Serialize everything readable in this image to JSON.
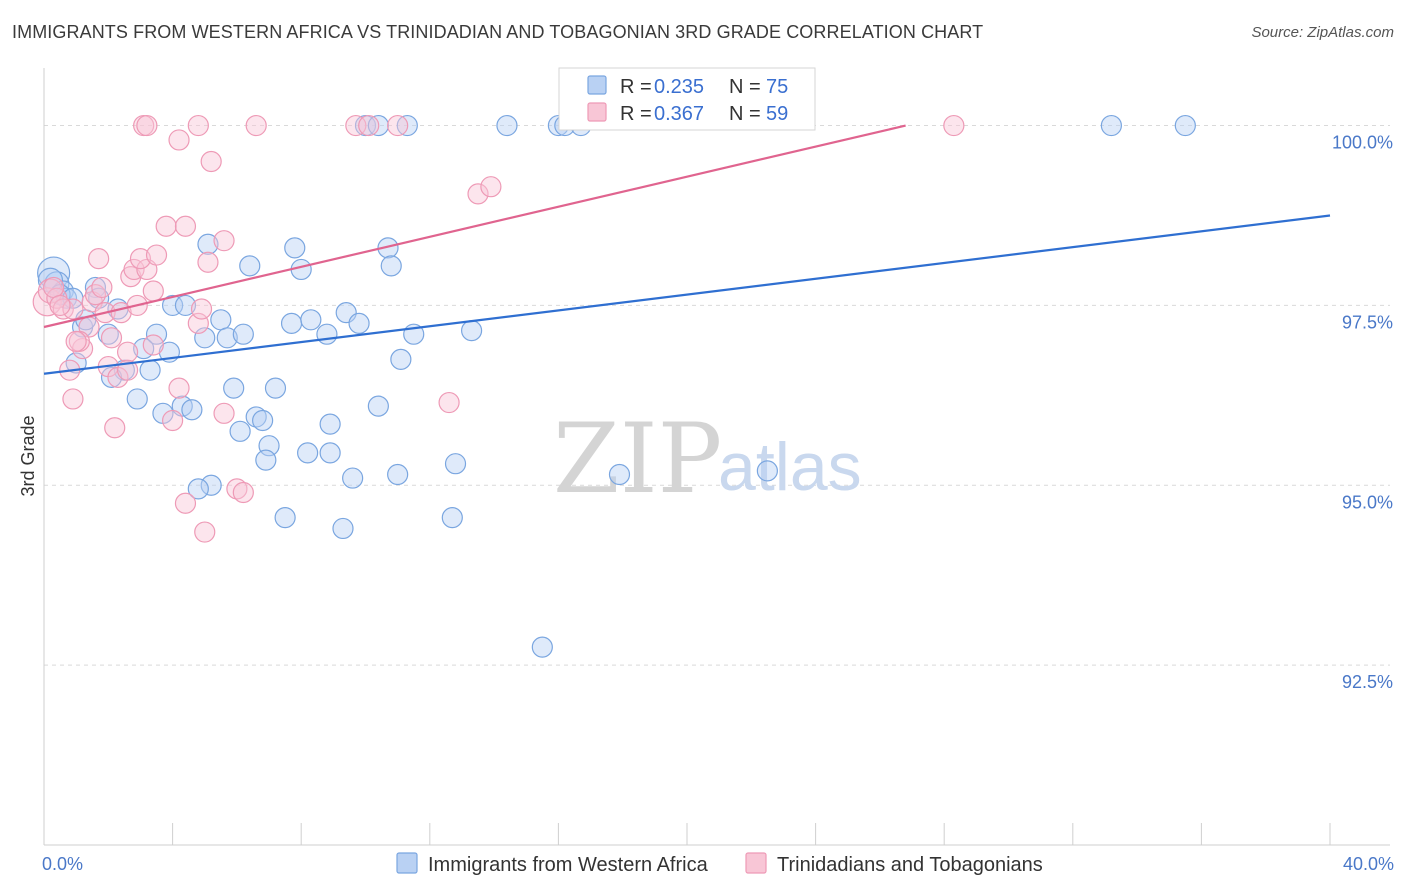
{
  "title": "IMMIGRANTS FROM WESTERN AFRICA VS TRINIDADIAN AND TOBAGONIAN 3RD GRADE CORRELATION CHART",
  "source": "Source: ZipAtlas.com",
  "watermark": {
    "zip": "ZIP",
    "atlas": "atlas"
  },
  "chart_data": {
    "type": "scatter",
    "ylabel": "3rd Grade",
    "xlim": [
      0,
      40
    ],
    "ylim": [
      90.0,
      100.8
    ],
    "x_tick_labels": [
      {
        "value": 0,
        "label": "0.0%"
      },
      {
        "value": 40,
        "label": "40.0%"
      }
    ],
    "y_ticks": [
      {
        "value": 100,
        "label": "100.0%"
      },
      {
        "value": 97.5,
        "label": "97.5%"
      },
      {
        "value": 95,
        "label": "95.0%"
      },
      {
        "value": 92.5,
        "label": "92.5%"
      }
    ],
    "x_minor_ticks": [
      0,
      4,
      8,
      12,
      16,
      20,
      24,
      28,
      32,
      36,
      40
    ],
    "legend": {
      "r_label": "R =",
      "n_label": "N =",
      "entries": [
        {
          "r": "0.235",
          "n": "75"
        },
        {
          "r": "0.367",
          "n": "59"
        }
      ]
    },
    "series": [
      {
        "name": "Immigrants from Western Africa",
        "color": "#7aa6e0",
        "fill": "#b9d1f3",
        "line_color": "#2f6fd1",
        "trend": {
          "x0": 0,
          "y0": 96.55,
          "x1": 40,
          "y1": 98.75
        },
        "points": [
          [
            0.3,
            97.95,
            16
          ],
          [
            0.4,
            97.8,
            12
          ],
          [
            0.6,
            97.7,
            10
          ],
          [
            0.7,
            97.6,
            10
          ],
          [
            1.6,
            97.75,
            10
          ],
          [
            1.7,
            97.6,
            10
          ],
          [
            1.2,
            97.2,
            10
          ],
          [
            2.0,
            97.1,
            10
          ],
          [
            1.0,
            96.7,
            10
          ],
          [
            2.5,
            96.6,
            10
          ],
          [
            2.1,
            96.5,
            10
          ],
          [
            3.5,
            97.1,
            10
          ],
          [
            4.0,
            97.5,
            10
          ],
          [
            4.4,
            97.5,
            10
          ],
          [
            3.1,
            96.9,
            10
          ],
          [
            3.9,
            96.85,
            10
          ],
          [
            3.3,
            96.6,
            10
          ],
          [
            2.9,
            96.2,
            10
          ],
          [
            3.7,
            96.0,
            10
          ],
          [
            4.3,
            96.1,
            10
          ],
          [
            4.6,
            96.05,
            10
          ],
          [
            5.0,
            97.05,
            10
          ],
          [
            5.5,
            97.3,
            10
          ],
          [
            5.7,
            97.05,
            10
          ],
          [
            6.2,
            97.1,
            10
          ],
          [
            5.1,
            98.35,
            10
          ],
          [
            6.4,
            98.05,
            10
          ],
          [
            5.9,
            96.35,
            10
          ],
          [
            6.6,
            95.95,
            10
          ],
          [
            6.8,
            95.9,
            10
          ],
          [
            6.1,
            95.75,
            10
          ],
          [
            7.2,
            96.35,
            10
          ],
          [
            7.7,
            97.25,
            10
          ],
          [
            8.3,
            97.3,
            10
          ],
          [
            8.8,
            97.1,
            10
          ],
          [
            7.8,
            98.3,
            10
          ],
          [
            8.0,
            98.0,
            10
          ],
          [
            9.4,
            97.4,
            10
          ],
          [
            9.8,
            97.25,
            10
          ],
          [
            7.0,
            95.55,
            10
          ],
          [
            6.9,
            95.35,
            10
          ],
          [
            8.2,
            95.45,
            10
          ],
          [
            8.9,
            95.85,
            10
          ],
          [
            8.9,
            95.45,
            10
          ],
          [
            9.6,
            95.1,
            10
          ],
          [
            7.5,
            94.55,
            10
          ],
          [
            9.3,
            94.4,
            10
          ],
          [
            5.2,
            95.0,
            10
          ],
          [
            4.8,
            94.95,
            10
          ],
          [
            10.4,
            96.1,
            10
          ],
          [
            11.1,
            96.75,
            10
          ],
          [
            11.5,
            97.1,
            10
          ],
          [
            13.3,
            97.15,
            10
          ],
          [
            11.0,
            95.15,
            10
          ],
          [
            12.8,
            95.3,
            10
          ],
          [
            12.7,
            94.55,
            10
          ],
          [
            17.9,
            95.15,
            10
          ],
          [
            22.5,
            95.2,
            10
          ],
          [
            15.5,
            92.75,
            10
          ],
          [
            10.7,
            98.3,
            10
          ],
          [
            10.8,
            98.05,
            10
          ],
          [
            10.0,
            100.0,
            10
          ],
          [
            10.4,
            100.0,
            10
          ],
          [
            11.3,
            100.0,
            10
          ],
          [
            14.4,
            100.0,
            10
          ],
          [
            16.0,
            100.0,
            10
          ],
          [
            16.2,
            100.0,
            10
          ],
          [
            16.7,
            100.0,
            10
          ],
          [
            33.2,
            100.0,
            10
          ],
          [
            35.5,
            100.0,
            10
          ],
          [
            0.2,
            97.85,
            12
          ],
          [
            0.5,
            97.65,
            10
          ],
          [
            2.3,
            97.45,
            10
          ],
          [
            1.3,
            97.3,
            10
          ],
          [
            0.9,
            97.6,
            10
          ]
        ]
      },
      {
        "name": "Trinidadians and Tobagonians",
        "color": "#ee9ab6",
        "fill": "#f8c6d6",
        "line_color": "#e0648f",
        "trend": {
          "x0": 0,
          "y0": 97.2,
          "x1": 26.8,
          "y1": 100.0
        },
        "points": [
          [
            0.1,
            97.55,
            14
          ],
          [
            0.2,
            97.7,
            12
          ],
          [
            0.4,
            97.6,
            10
          ],
          [
            0.6,
            97.45,
            10
          ],
          [
            0.9,
            97.45,
            10
          ],
          [
            1.4,
            97.2,
            10
          ],
          [
            1.5,
            97.55,
            10
          ],
          [
            1.6,
            97.65,
            10
          ],
          [
            1.8,
            97.75,
            10
          ],
          [
            1.2,
            96.9,
            10
          ],
          [
            0.8,
            96.6,
            10
          ],
          [
            0.9,
            96.2,
            10
          ],
          [
            1.1,
            97.0,
            10
          ],
          [
            1.9,
            97.4,
            10
          ],
          [
            2.1,
            97.05,
            10
          ],
          [
            2.4,
            97.4,
            10
          ],
          [
            2.6,
            96.85,
            10
          ],
          [
            2.0,
            96.65,
            10
          ],
          [
            2.3,
            96.5,
            10
          ],
          [
            2.6,
            96.6,
            10
          ],
          [
            2.7,
            97.9,
            10
          ],
          [
            2.8,
            98.0,
            10
          ],
          [
            3.2,
            98.0,
            10
          ],
          [
            3.0,
            98.15,
            10
          ],
          [
            3.5,
            98.2,
            10
          ],
          [
            3.4,
            97.7,
            10
          ],
          [
            1.7,
            98.15,
            10
          ],
          [
            2.2,
            95.8,
            10
          ],
          [
            4.2,
            96.35,
            10
          ],
          [
            4.0,
            95.9,
            10
          ],
          [
            4.8,
            97.25,
            10
          ],
          [
            4.9,
            97.45,
            10
          ],
          [
            5.1,
            98.1,
            10
          ],
          [
            5.6,
            98.4,
            10
          ],
          [
            3.8,
            98.6,
            10
          ],
          [
            4.4,
            98.6,
            10
          ],
          [
            5.6,
            96.0,
            10
          ],
          [
            6.0,
            94.95,
            10
          ],
          [
            6.2,
            94.9,
            10
          ],
          [
            4.4,
            94.75,
            10
          ],
          [
            5.0,
            94.35,
            10
          ],
          [
            12.6,
            96.15,
            10
          ],
          [
            3.1,
            100.0,
            10
          ],
          [
            3.2,
            100.0,
            10
          ],
          [
            4.8,
            100.0,
            10
          ],
          [
            6.6,
            100.0,
            10
          ],
          [
            9.7,
            100.0,
            10
          ],
          [
            10.1,
            100.0,
            10
          ],
          [
            11.0,
            100.0,
            10
          ],
          [
            28.3,
            100.0,
            10
          ],
          [
            4.2,
            99.8,
            10
          ],
          [
            5.2,
            99.5,
            10
          ],
          [
            13.5,
            99.05,
            10
          ],
          [
            13.9,
            99.15,
            10
          ],
          [
            0.3,
            97.75,
            10
          ],
          [
            0.5,
            97.5,
            10
          ],
          [
            1.0,
            97.0,
            10
          ],
          [
            2.9,
            97.5,
            10
          ],
          [
            3.4,
            96.95,
            10
          ]
        ]
      }
    ]
  }
}
